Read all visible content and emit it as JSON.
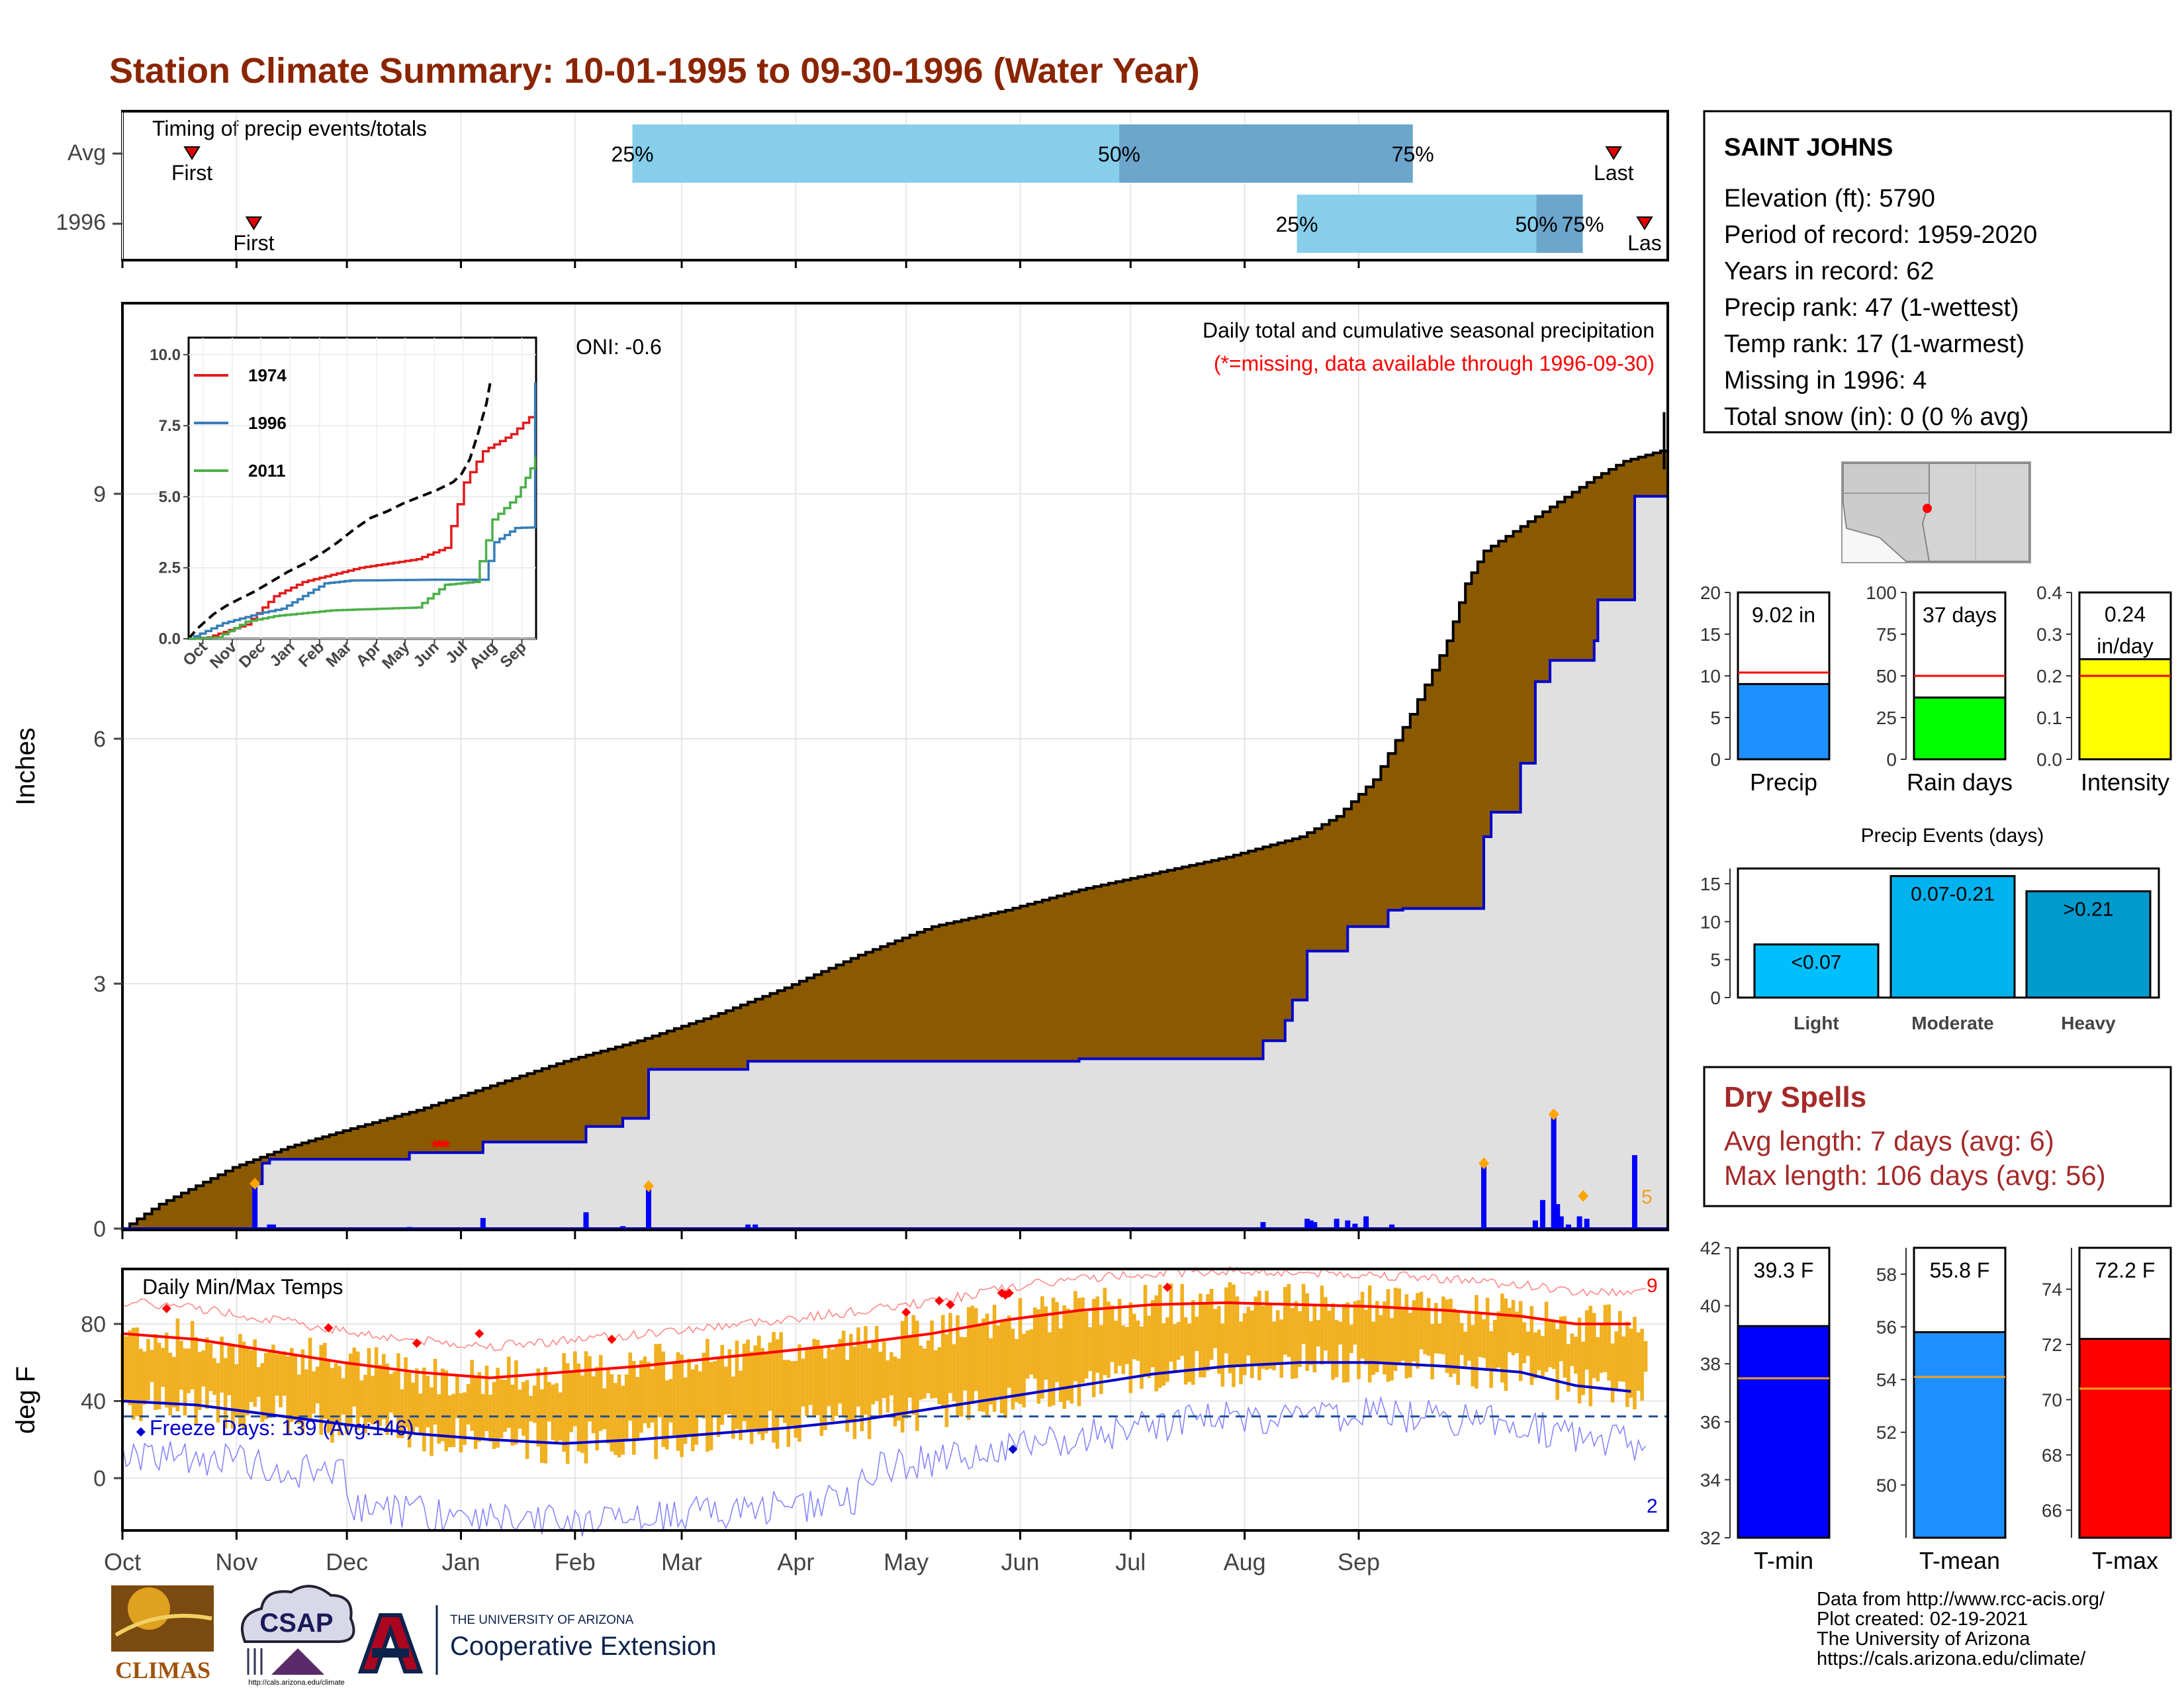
{
  "title": "Station Climate Summary: 10-01-1995 to 09-30-1996 (Water Year)",
  "timing": {
    "label": "Timing of precip events/totals",
    "rows": [
      {
        "name": "Avg",
        "first": 0.045,
        "q25": 0.33,
        "q50": 0.645,
        "q75": 0.835,
        "last": 0.965,
        "first_label": "First",
        "last_label": "Last",
        "q25_label": "25%",
        "q50_label": "50%",
        "q75_label": "75%"
      },
      {
        "name": "1996",
        "first": 0.085,
        "q25": 0.76,
        "q50": 0.915,
        "q75": 0.945,
        "last": 0.985,
        "first_label": "First",
        "last_label": "Las",
        "q25_label": "25%",
        "q50_label": "50%",
        "q75_label": "75%"
      }
    ]
  },
  "station": {
    "name": "SAINT JOHNS",
    "lines": [
      "Elevation (ft): 5790",
      "Period of record: 1959-2020",
      "Years in record: 62",
      "Precip rank: 47 (1-wettest)",
      "Temp rank: 17 (1-warmest)",
      "Missing in 1996: 4",
      "Total snow (in): 0 (0 % avg)"
    ]
  },
  "months": [
    "Oct",
    "Nov",
    "Dec",
    "Jan",
    "Feb",
    "Mar",
    "Apr",
    "May",
    "Jun",
    "Jul",
    "Aug",
    "Sep"
  ],
  "precip": {
    "ylabel": "Inches",
    "yticks": [
      "0",
      "3",
      "6",
      "9"
    ],
    "oni": "ONI: -0.6",
    "legend_text": "Daily total and cumulative seasonal precipitation",
    "missing_note": "(*=missing, data available through 1996-09-30)",
    "extreme_count": "5",
    "avg_cumulative": [
      [
        0,
        0
      ],
      [
        10,
        0.3
      ],
      [
        30,
        0.75
      ],
      [
        45,
        1.0
      ],
      [
        60,
        1.2
      ],
      [
        80,
        1.45
      ],
      [
        100,
        1.75
      ],
      [
        120,
        2.05
      ],
      [
        140,
        2.3
      ],
      [
        160,
        2.6
      ],
      [
        180,
        2.95
      ],
      [
        200,
        3.35
      ],
      [
        220,
        3.7
      ],
      [
        240,
        3.9
      ],
      [
        260,
        4.15
      ],
      [
        280,
        4.35
      ],
      [
        300,
        4.55
      ],
      [
        320,
        4.8
      ],
      [
        330,
        5.05
      ],
      [
        340,
        5.5
      ],
      [
        350,
        6.3
      ],
      [
        360,
        7.2
      ],
      [
        365,
        7.9
      ],
      [
        370,
        8.3
      ],
      [
        390,
        8.9
      ],
      [
        400,
        9.2
      ],
      [
        408,
        9.4
      ],
      [
        420,
        9.55
      ]
    ],
    "cum_1996": [
      [
        0,
        0
      ],
      [
        35,
        0
      ],
      [
        36,
        0.55
      ],
      [
        38,
        0.8
      ],
      [
        40,
        0.85
      ],
      [
        78,
        0.85
      ],
      [
        78,
        0.93
      ],
      [
        98,
        0.93
      ],
      [
        98,
        1.06
      ],
      [
        126,
        1.06
      ],
      [
        126,
        1.25
      ],
      [
        136,
        1.35
      ],
      [
        143,
        1.35
      ],
      [
        143,
        1.95
      ],
      [
        170,
        1.95
      ],
      [
        170,
        2.05
      ],
      [
        260,
        2.08
      ],
      [
        310,
        2.08
      ],
      [
        310,
        2.3
      ],
      [
        316,
        2.55
      ],
      [
        318,
        2.8
      ],
      [
        322,
        3.2
      ],
      [
        322,
        3.4
      ],
      [
        333,
        3.7
      ],
      [
        340,
        3.7
      ],
      [
        344,
        3.9
      ],
      [
        348,
        3.92
      ],
      [
        362,
        3.92
      ],
      [
        370,
        3.92
      ],
      [
        370,
        4.8
      ],
      [
        372,
        5.1
      ],
      [
        380,
        5.7
      ],
      [
        384,
        6.7
      ],
      [
        388,
        6.96
      ],
      [
        400,
        6.96
      ],
      [
        400,
        7.2
      ],
      [
        401,
        7.7
      ],
      [
        411,
        7.7
      ],
      [
        411,
        8.97
      ],
      [
        420,
        9.02
      ]
    ],
    "daily_bars": [
      [
        36,
        0.55
      ],
      [
        40,
        0.05
      ],
      [
        41,
        0.05
      ],
      [
        78,
        0.02
      ],
      [
        98,
        0.13
      ],
      [
        126,
        0.2
      ],
      [
        136,
        0.03
      ],
      [
        143,
        0.52
      ],
      [
        170,
        0.05
      ],
      [
        172,
        0.05
      ],
      [
        310,
        0.08
      ],
      [
        322,
        0.12
      ],
      [
        323,
        0.1
      ],
      [
        324,
        0.08
      ],
      [
        330,
        0.12
      ],
      [
        333,
        0.1
      ],
      [
        335,
        0.06
      ],
      [
        338,
        0.15
      ],
      [
        345,
        0.05
      ],
      [
        370,
        0.8
      ],
      [
        384,
        0.1
      ],
      [
        386,
        0.35
      ],
      [
        389,
        1.4
      ],
      [
        390,
        0.3
      ],
      [
        391,
        0.15
      ],
      [
        393,
        0.05
      ],
      [
        396,
        0.15
      ],
      [
        398,
        0.12
      ],
      [
        411,
        0.9
      ]
    ],
    "missing_days": [
      [
        85,
        0.98
      ],
      [
        86,
        0.98
      ],
      [
        87,
        0.98
      ],
      [
        88,
        0.98
      ]
    ],
    "extreme_markers": [
      [
        36,
        0.55
      ],
      [
        143,
        0.52
      ],
      [
        370,
        0.8
      ],
      [
        389,
        1.4
      ],
      [
        397,
        0.4
      ]
    ],
    "inset": {
      "series": [
        {
          "name": "1974",
          "color": "#e31a1c",
          "values": [
            [
              0,
              0
            ],
            [
              20,
              0.05
            ],
            [
              60,
              0.5
            ],
            [
              90,
              1.5
            ],
            [
              120,
              2.0
            ],
            [
              180,
              2.5
            ],
            [
              240,
              2.8
            ],
            [
              270,
              3.2
            ],
            [
              290,
              5.5
            ],
            [
              310,
              6.6
            ],
            [
              340,
              7.2
            ],
            [
              365,
              8.0
            ]
          ]
        },
        {
          "name": "1996",
          "color": "#377eb8",
          "values": [
            [
              0,
              0
            ],
            [
              36,
              0.55
            ],
            [
              78,
              0.93
            ],
            [
              98,
              1.06
            ],
            [
              143,
              1.95
            ],
            [
              170,
              2.05
            ],
            [
              260,
              2.08
            ],
            [
              310,
              2.08
            ],
            [
              322,
              3.4
            ],
            [
              344,
              3.9
            ],
            [
              362,
              3.92
            ],
            [
              365,
              9.02
            ]
          ]
        },
        {
          "name": "2011",
          "color": "#4daf4a",
          "values": [
            [
              0,
              0
            ],
            [
              30,
              0.05
            ],
            [
              60,
              0.6
            ],
            [
              90,
              0.8
            ],
            [
              150,
              1.0
            ],
            [
              240,
              1.1
            ],
            [
              270,
              1.9
            ],
            [
              300,
              2.0
            ],
            [
              320,
              4.2
            ],
            [
              345,
              5.0
            ],
            [
              360,
              6.0
            ],
            [
              365,
              6.4
            ]
          ]
        }
      ],
      "yticks": [
        "0.0",
        "2.5",
        "5.0",
        "7.5",
        "10.0"
      ],
      "months": [
        "Oct",
        "Nov",
        "Dec",
        "Jan",
        "Feb",
        "Mar",
        "Apr",
        "May",
        "Jun",
        "Jul",
        "Aug",
        "Sep"
      ]
    }
  },
  "precip_stats": [
    {
      "label": "Precip",
      "value": 9.02,
      "avg": 10.4,
      "ymax": 20,
      "yticks": [
        "0",
        "5",
        "10",
        "15",
        "20"
      ],
      "text": "9.02 in",
      "color": "#1e90ff"
    },
    {
      "label": "Rain days",
      "value": 37,
      "avg": 50,
      "ymax": 100,
      "yticks": [
        "0",
        "25",
        "50",
        "75",
        "100"
      ],
      "text": "37 days",
      "color": "#00ff00"
    },
    {
      "label": "Intensity",
      "value": 0.24,
      "avg": 0.2,
      "ymax": 0.4,
      "yticks": [
        "0.0",
        "0.1",
        "0.2",
        "0.3",
        "0.4"
      ],
      "text": "0.24 in/day",
      "color": "#ffff00"
    }
  ],
  "events": {
    "title": "Precip Events (days)",
    "yticks": [
      "0",
      "5",
      "10",
      "15"
    ],
    "bars": [
      {
        "label": "Light",
        "value": 7,
        "text": "<0.07",
        "color": "#00bfff"
      },
      {
        "label": "Moderate",
        "value": 16,
        "text": "0.07-0.21",
        "color": "#00b2ee"
      },
      {
        "label": "Heavy",
        "value": 14,
        "text": ">0.21",
        "color": "#009acd"
      }
    ]
  },
  "dry_spells": {
    "title": "Dry Spells",
    "avg_length": "Avg length: 7 days (avg: 6)",
    "max_length": "Max length: 106 days (avg: 56)"
  },
  "temp": {
    "label": "Daily Min/Max Temps",
    "ylabel": "deg F",
    "yticks": [
      "0",
      "40",
      "80"
    ],
    "freeze": "Freeze Days: 139 (Avg:146)",
    "record_high_count": "9",
    "record_low_count": "2",
    "avg_max": [
      [
        0,
        75
      ],
      [
        20,
        72
      ],
      [
        40,
        66
      ],
      [
        60,
        60
      ],
      [
        80,
        55
      ],
      [
        100,
        52
      ],
      [
        120,
        55
      ],
      [
        140,
        58
      ],
      [
        160,
        62
      ],
      [
        180,
        66
      ],
      [
        200,
        70
      ],
      [
        220,
        75
      ],
      [
        240,
        82
      ],
      [
        260,
        87
      ],
      [
        280,
        90
      ],
      [
        300,
        91
      ],
      [
        320,
        90
      ],
      [
        340,
        89
      ],
      [
        360,
        87
      ],
      [
        380,
        84
      ],
      [
        395,
        80
      ],
      [
        410,
        80
      ]
    ],
    "avg_min": [
      [
        0,
        40
      ],
      [
        20,
        38
      ],
      [
        40,
        33
      ],
      [
        60,
        28
      ],
      [
        80,
        23
      ],
      [
        100,
        20
      ],
      [
        120,
        18
      ],
      [
        140,
        20
      ],
      [
        160,
        23
      ],
      [
        180,
        26
      ],
      [
        200,
        30
      ],
      [
        220,
        36
      ],
      [
        240,
        42
      ],
      [
        260,
        48
      ],
      [
        280,
        54
      ],
      [
        300,
        58
      ],
      [
        320,
        60
      ],
      [
        340,
        60
      ],
      [
        360,
        58
      ],
      [
        380,
        55
      ],
      [
        395,
        48
      ],
      [
        410,
        45
      ]
    ]
  },
  "temp_stats": [
    {
      "label": "T-min",
      "value": 39.3,
      "avg": 37.5,
      "ymin": 32,
      "ymax": 42,
      "yticks": [
        "32",
        "34",
        "36",
        "38",
        "40",
        "42"
      ],
      "text": "39.3 F",
      "color": "#0000ff"
    },
    {
      "label": "T-mean",
      "value": 55.8,
      "avg": 54.1,
      "ymin": 48,
      "ymax": 59,
      "yticks": [
        "50",
        "52",
        "54",
        "56",
        "58"
      ],
      "text": "55.8 F",
      "color": "#1e90ff"
    },
    {
      "label": "T-max",
      "value": 72.2,
      "avg": 70.4,
      "ymin": 65,
      "ymax": 75.5,
      "yticks": [
        "66",
        "68",
        "70",
        "72",
        "74"
      ],
      "text": "72.2 F",
      "color": "#ff0000"
    }
  ],
  "footer": {
    "logo_climas": "CLIMAS",
    "logo_csap": "CSAP",
    "csap_url": "http://cals.arizona.edu/climate",
    "ua_small": "THE UNIVERSITY OF ARIZONA",
    "ua_big": "Cooperative Extension",
    "credits": [
      "Data from http://www.rcc-acis.org/",
      "Plot created: 02-19-2021",
      "The University of Arizona",
      "https://cals.arizona.edu/climate/"
    ]
  },
  "colors": {
    "title": "#8b2500",
    "avg_fill": "#8b5a00",
    "year_fill": "#e0e0e0",
    "year_line": "#0000cd",
    "bar": "#0000ff",
    "temp_bar": "#f0b020",
    "dry_spells": "#a52a2a"
  }
}
